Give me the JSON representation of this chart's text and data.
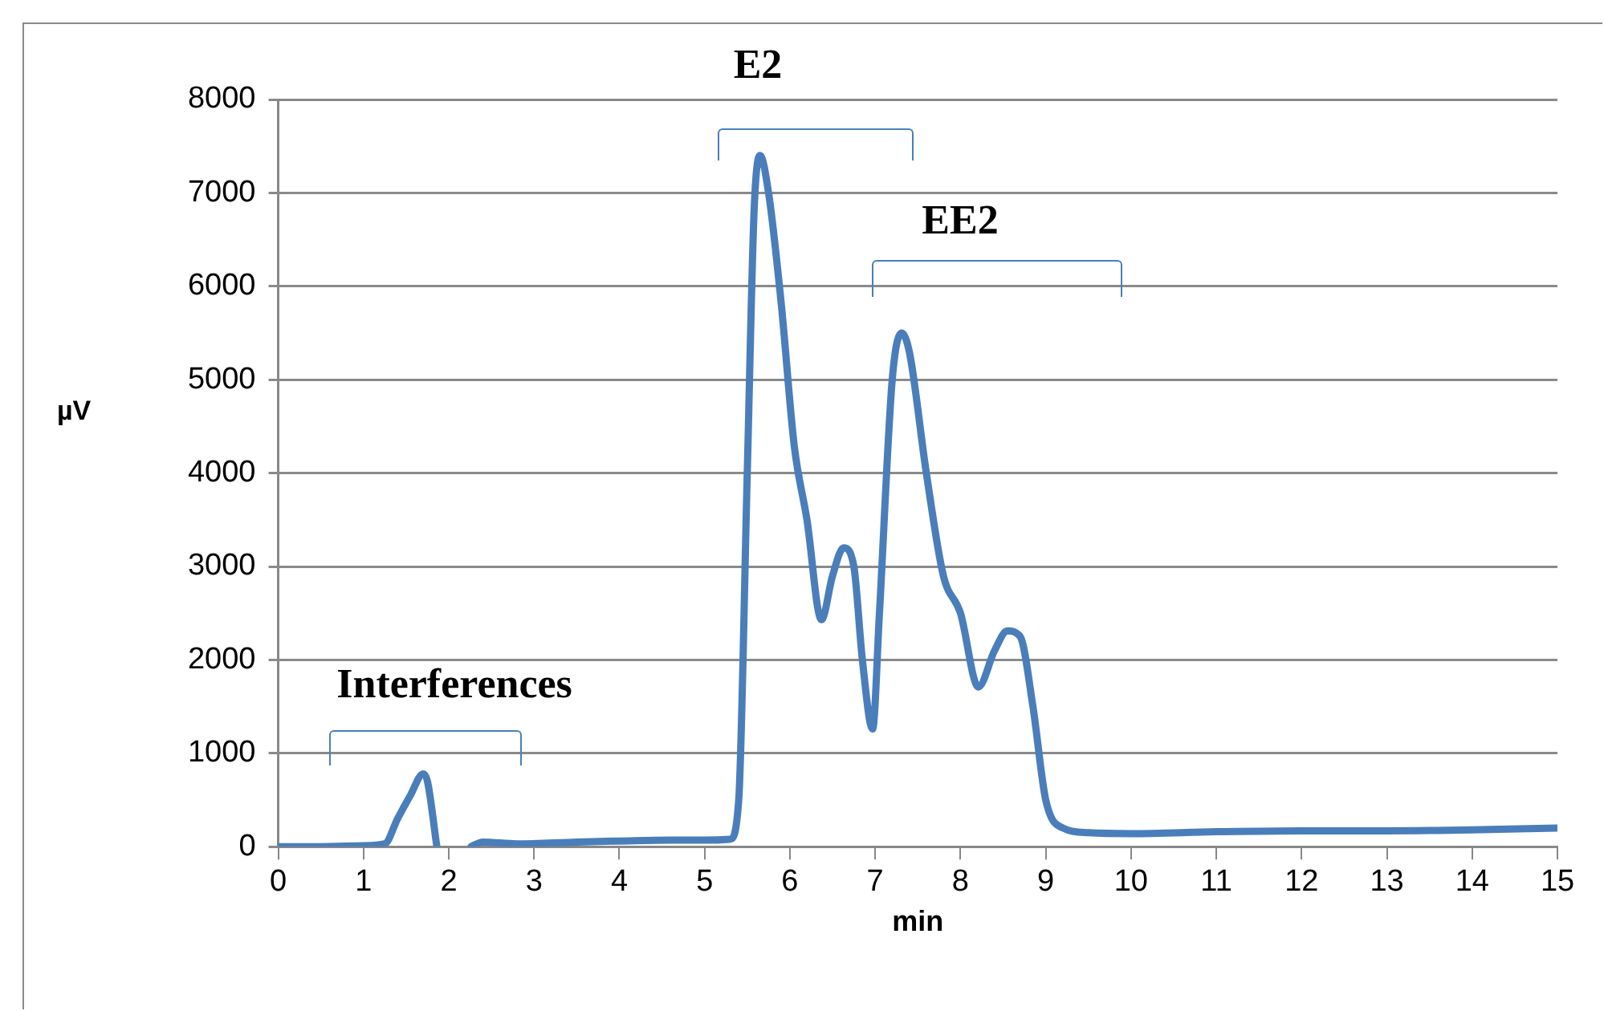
{
  "chart_data": {
    "type": "line",
    "xlabel": "min",
    "ylabel": "µV",
    "x": [
      0,
      0.5,
      1.0,
      1.25,
      1.4,
      1.55,
      1.7,
      1.75,
      1.86,
      2.05,
      2.26,
      2.4,
      2.8,
      3.5,
      4,
      4.6,
      5.0,
      5.3,
      5.4,
      5.5,
      5.58,
      5.65,
      5.75,
      5.9,
      6.05,
      6.2,
      6.37,
      6.5,
      6.63,
      6.75,
      6.85,
      6.97,
      7.05,
      7.2,
      7.31,
      7.4,
      7.6,
      7.8,
      8.0,
      8.21,
      8.4,
      8.55,
      8.7,
      8.85,
      9.0,
      9.2,
      9.5,
      10,
      11,
      12,
      13,
      14,
      15
    ],
    "series": [
      {
        "color": "#4a7ebb",
        "values": [
          0,
          0,
          10,
          30,
          300,
          550,
          780,
          700,
          0,
          null,
          0,
          50,
          30,
          50,
          60,
          70,
          70,
          80,
          500,
          4000,
          6800,
          7400,
          7000,
          5800,
          4300,
          3500,
          2430,
          2900,
          3200,
          3000,
          2000,
          1260,
          2500,
          5000,
          5500,
          5300,
          4000,
          2900,
          2500,
          1710,
          2100,
          2310,
          2250,
          1500,
          500,
          200,
          150,
          140,
          160,
          170,
          170,
          180,
          200
        ]
      }
    ],
    "xlim": [
      0,
      15
    ],
    "xticks": [
      0,
      1,
      2,
      3,
      4,
      5,
      6,
      7,
      8,
      9,
      10,
      11,
      12,
      13,
      14,
      15
    ],
    "ylim": [
      0,
      8000
    ],
    "yticks": [
      0,
      1000,
      2000,
      3000,
      4000,
      5000,
      6000,
      7000,
      8000
    ],
    "grid": "y",
    "legend": false,
    "marker": "none",
    "line_style": "solid",
    "annotations": [
      "Interferences",
      "E2",
      "EE2"
    ]
  }
}
